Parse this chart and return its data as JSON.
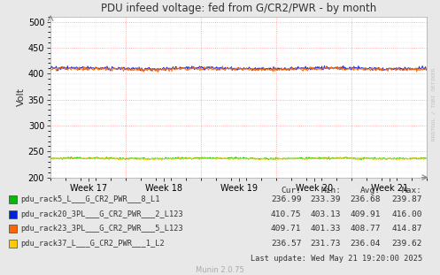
{
  "title": "PDU infeed voltage: fed from G/CR2/PWR - by month",
  "ylabel": "Volt",
  "bg_color": "#e8e8e8",
  "plot_bg_color": "#ffffff",
  "ylim": [
    200,
    510
  ],
  "yticks": [
    200,
    250,
    300,
    350,
    400,
    450,
    500
  ],
  "week_labels": [
    "Week 17",
    "Week 18",
    "Week 19",
    "Week 20",
    "Week 21"
  ],
  "week_tick_positions": [
    0.5,
    1.5,
    2.5,
    3.5,
    4.5
  ],
  "series": [
    {
      "label": "pdu_rack5_L___G_CR2_PWR___8_L1",
      "color": "#00bb00",
      "mean": 236.68,
      "noise": 1.8,
      "seed": 1
    },
    {
      "label": "pdu_rack20_3PL___G_CR2_PWR___2_L123",
      "color": "#0022dd",
      "mean": 409.91,
      "noise": 3.5,
      "seed": 2
    },
    {
      "label": "pdu_rack23_3PL___G_CR2_PWR___5_L123",
      "color": "#ff6600",
      "mean": 408.77,
      "noise": 3.5,
      "seed": 3
    },
    {
      "label": "pdu_rack37_L___G_CR2_PWR___1_L2",
      "color": "#ffcc00",
      "mean": 236.04,
      "noise": 1.8,
      "seed": 4
    }
  ],
  "legend_data": [
    {
      "label": "pdu_rack5_L___G_CR2_PWR___8_L1",
      "color": "#00bb00",
      "cur": "236.99",
      "min": "233.39",
      "avg": "236.68",
      "max": "239.87"
    },
    {
      "label": "pdu_rack20_3PL___G_CR2_PWR___2_L123",
      "color": "#0022dd",
      "cur": "410.75",
      "min": "403.13",
      "avg": "409.91",
      "max": "416.00"
    },
    {
      "label": "pdu_rack23_3PL___G_CR2_PWR___5_L123",
      "color": "#ff6600",
      "cur": "409.71",
      "min": "401.33",
      "avg": "408.77",
      "max": "414.87"
    },
    {
      "label": "pdu_rack37_L___G_CR2_PWR___1_L2",
      "color": "#ffcc00",
      "cur": "236.57",
      "min": "231.73",
      "avg": "236.04",
      "max": "239.62"
    }
  ],
  "last_update": "Last update: Wed May 21 19:20:00 2025",
  "munin_version": "Munin 2.0.75",
  "watermark": "RRDTOOL / TOBI OETIKER"
}
